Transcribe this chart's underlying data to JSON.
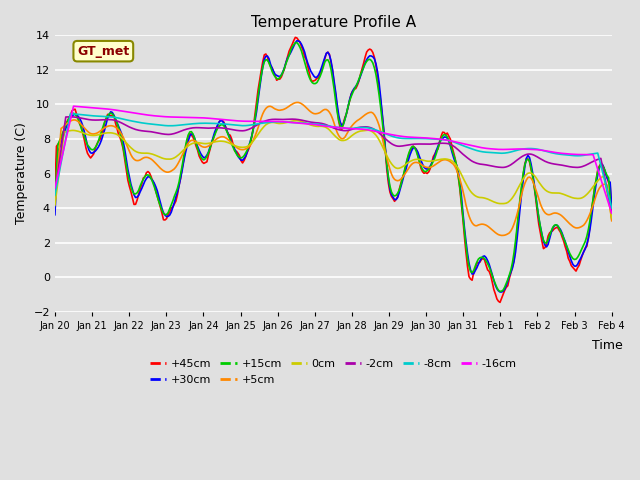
{
  "title": "Temperature Profile A",
  "xlabel": "Time",
  "ylabel": "Temperature (C)",
  "ylim": [
    -2,
    14
  ],
  "plot_bg_color": "#e0e0e0",
  "grid_color": "white",
  "series": {
    "+45cm": {
      "color": "#ff0000",
      "lw": 1.2
    },
    "+30cm": {
      "color": "#0000ff",
      "lw": 1.2
    },
    "+15cm": {
      "color": "#00cc00",
      "lw": 1.2
    },
    "+5cm": {
      "color": "#ff8800",
      "lw": 1.2
    },
    "0cm": {
      "color": "#cccc00",
      "lw": 1.2
    },
    "-2cm": {
      "color": "#aa00aa",
      "lw": 1.2
    },
    "-8cm": {
      "color": "#00cccc",
      "lw": 1.2
    },
    "-16cm": {
      "color": "#ff00ff",
      "lw": 1.2
    }
  },
  "xtick_labels": [
    "Jan 20",
    "Jan 21",
    "Jan 22",
    "Jan 23",
    "Jan 24",
    "Jan 25",
    "Jan 26",
    "Jan 27",
    "Jan 28",
    "Jan 29",
    "Jan 30",
    "Jan 31",
    "Feb 1",
    "Feb 2",
    "Feb 3",
    "Feb 4"
  ],
  "annotation_text": "GT_met",
  "annotation_bg": "#ffffcc",
  "annotation_border": "#888800"
}
